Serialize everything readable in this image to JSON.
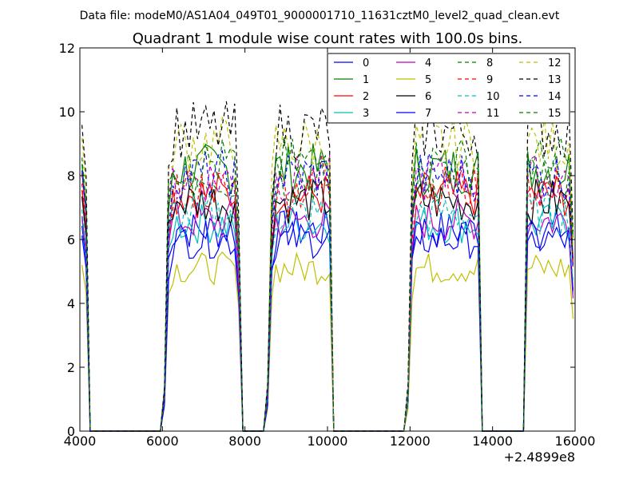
{
  "chart_data": {
    "type": "line",
    "suptitle": "Data file: modeM0/AS1A04_049T01_9000001710_11631cztM0_level2_quad_clean.evt",
    "title": "Quadrant 1 module wise count rates with 100.0s bins.",
    "xlabel": "",
    "ylabel": "",
    "x_offset_label": "+2.4899e8",
    "xlim": [
      4000,
      16000
    ],
    "ylim": [
      0,
      12
    ],
    "x_ticks": [
      "4000",
      "6000",
      "8000",
      "10000",
      "12000",
      "14000",
      "16000"
    ],
    "y_ticks": [
      "0",
      "2",
      "4",
      "6",
      "8",
      "10",
      "12"
    ],
    "grid": false,
    "legend_position": "top-right",
    "bin_seconds": 100,
    "active_segments": [
      [
        6050,
        7850
      ],
      [
        8550,
        10100
      ],
      [
        11950,
        13700
      ],
      [
        14800,
        15950
      ]
    ],
    "series": [
      {
        "name": "0",
        "color": "#0000ff",
        "dash": "solid",
        "level": 6.3
      },
      {
        "name": "1",
        "color": "#008000",
        "dash": "solid",
        "level": 8.2
      },
      {
        "name": "2",
        "color": "#ff0000",
        "dash": "solid",
        "level": 7.4
      },
      {
        "name": "3",
        "color": "#00bfbf",
        "dash": "solid",
        "level": 6.5
      },
      {
        "name": "4",
        "color": "#bf00bf",
        "dash": "solid",
        "level": 6.6
      },
      {
        "name": "5",
        "color": "#bfbf00",
        "dash": "solid",
        "level": 5.1
      },
      {
        "name": "6",
        "color": "#000000",
        "dash": "solid",
        "level": 7.2
      },
      {
        "name": "7",
        "color": "#0000ff",
        "dash": "solid",
        "level": 6.0
      },
      {
        "name": "8",
        "color": "#008000",
        "dash": "dashed",
        "level": 7.9
      },
      {
        "name": "9",
        "color": "#ff0000",
        "dash": "dashed",
        "level": 7.6
      },
      {
        "name": "10",
        "color": "#00bfbf",
        "dash": "dashed",
        "level": 6.8
      },
      {
        "name": "11",
        "color": "#bf00bf",
        "dash": "dashed",
        "level": 7.9
      },
      {
        "name": "12",
        "color": "#bfbf00",
        "dash": "dashed",
        "level": 9.0
      },
      {
        "name": "13",
        "color": "#000000",
        "dash": "dashed",
        "level": 9.4
      },
      {
        "name": "14",
        "color": "#0000ff",
        "dash": "dashed",
        "level": 8.0
      },
      {
        "name": "15",
        "color": "#008000",
        "dash": "dashed",
        "level": 8.4
      }
    ]
  }
}
